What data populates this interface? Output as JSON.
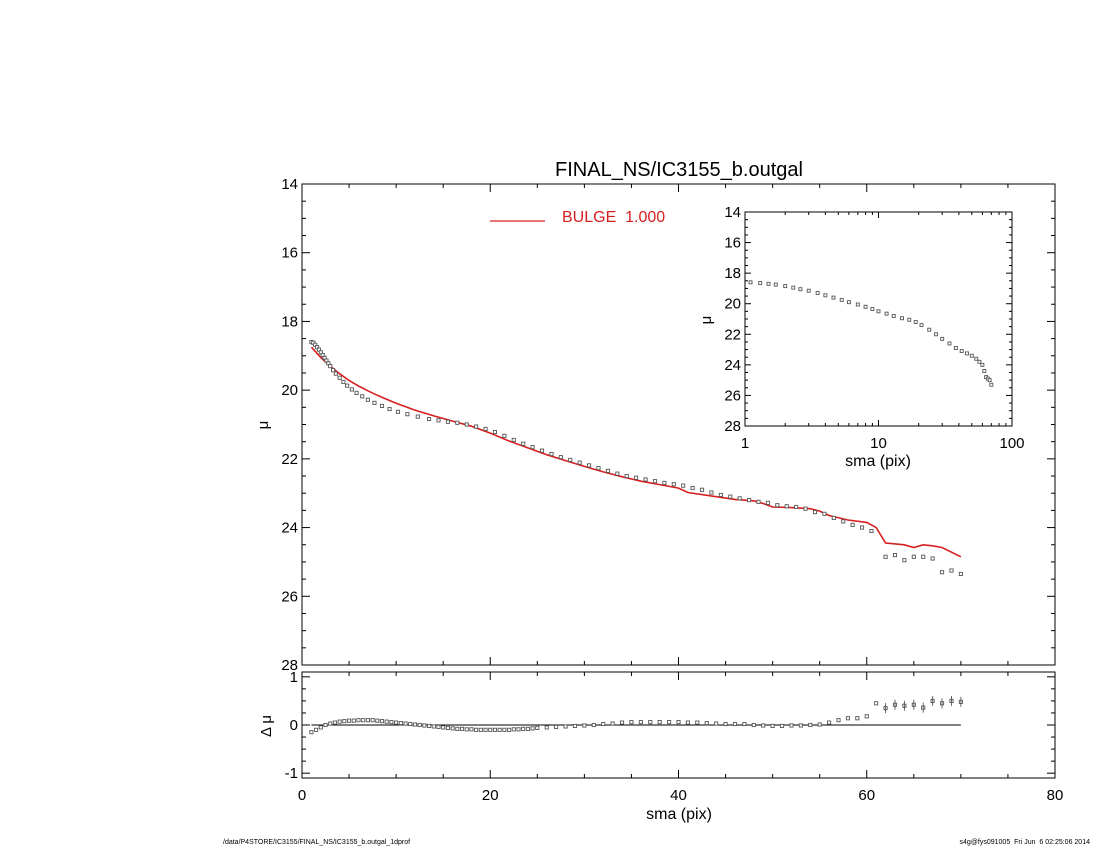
{
  "page": {
    "footer_left": "/data/P4STORE/IC3155/FINAL_NS/IC3155_b.outgal_1dprof",
    "footer_right": "s4g@fys091005  Fri Jun  6 02:25:06 2014"
  },
  "colors": {
    "axes": "#000000",
    "model": "#d62020",
    "data_marker": "#555555"
  },
  "chart_data": [
    {
      "id": "profile",
      "type": "line",
      "title": "FINAL_NS/IC3155_b.outgal",
      "xlabel": "",
      "ylabel": "μ",
      "xlim": [
        0,
        80
      ],
      "ylim": [
        28,
        14
      ],
      "y_inverted": true,
      "xticks": [
        0,
        20,
        40,
        60,
        80
      ],
      "yticks": [
        14,
        16,
        18,
        20,
        22,
        24,
        26,
        28
      ],
      "show_x_ticklabels": false,
      "legend": {
        "placement": "top-center",
        "entries": [
          {
            "label": "BULGE  1.000",
            "color": "#d62020"
          }
        ]
      },
      "series": [
        {
          "name": "BULGE  1.000",
          "kind": "line",
          "color": "#d62020",
          "x": [
            1,
            2,
            3,
            4,
            5,
            6,
            7,
            8,
            10,
            12,
            14,
            16,
            18,
            20,
            22,
            24,
            26,
            28,
            30,
            32,
            34,
            36,
            38,
            40,
            41,
            44,
            46,
            48,
            49,
            50,
            52,
            54,
            55,
            56,
            58,
            60,
            61,
            62,
            64,
            65,
            66,
            67,
            68,
            70
          ],
          "y": [
            18.75,
            19.05,
            19.3,
            19.52,
            19.72,
            19.88,
            20.02,
            20.15,
            20.38,
            20.58,
            20.75,
            20.9,
            21.05,
            21.25,
            21.48,
            21.68,
            21.88,
            22.05,
            22.22,
            22.38,
            22.52,
            22.65,
            22.75,
            22.85,
            22.98,
            23.1,
            23.18,
            23.22,
            23.3,
            23.4,
            23.42,
            23.45,
            23.52,
            23.65,
            23.78,
            23.85,
            24.0,
            24.45,
            24.5,
            24.58,
            24.5,
            24.53,
            24.58,
            24.85
          ]
        },
        {
          "name": "",
          "kind": "marker",
          "color": "#555555",
          "x": [
            1,
            1.2,
            1.4,
            1.6,
            1.8,
            2,
            2.2,
            2.4,
            2.6,
            2.8,
            3,
            3.3,
            3.6,
            4,
            4.4,
            4.8,
            5.3,
            5.8,
            6.4,
            7,
            7.7,
            8.5,
            9.3,
            10.2,
            11.2,
            12.3,
            13.5,
            14.5,
            15.5,
            16.5,
            17.5,
            18.5,
            19.5,
            20.5,
            21.5,
            22.5,
            23.5,
            24.5,
            25.5,
            26.5,
            27.5,
            28.5,
            29.5,
            30.5,
            31.5,
            32.5,
            33.5,
            34.5,
            35.5,
            36.5,
            37.5,
            38.5,
            39.5,
            40.5,
            41.5,
            42.5,
            43.5,
            44.5,
            45.5,
            46.5,
            47.5,
            48.5,
            49.5,
            50.5,
            51.5,
            52.5,
            53.5,
            54.5,
            55.5,
            56.5,
            57.5,
            58.5,
            59.5,
            60.5,
            62,
            63,
            64,
            65,
            66,
            67,
            68,
            69,
            70
          ],
          "y": [
            18.6,
            18.62,
            18.68,
            18.75,
            18.82,
            18.9,
            18.98,
            19.06,
            19.14,
            19.22,
            19.3,
            19.42,
            19.52,
            19.64,
            19.76,
            19.87,
            19.98,
            20.08,
            20.18,
            20.28,
            20.37,
            20.46,
            20.55,
            20.63,
            20.7,
            20.77,
            20.84,
            20.88,
            20.92,
            20.95,
            21.0,
            21.06,
            21.13,
            21.22,
            21.33,
            21.45,
            21.56,
            21.66,
            21.76,
            21.86,
            21.95,
            22.03,
            22.11,
            22.19,
            22.27,
            22.35,
            22.43,
            22.5,
            22.55,
            22.6,
            22.65,
            22.7,
            22.74,
            22.78,
            22.85,
            22.9,
            22.98,
            23.05,
            23.1,
            23.15,
            23.2,
            23.25,
            23.28,
            23.35,
            23.38,
            23.4,
            23.45,
            23.55,
            23.6,
            23.72,
            23.82,
            23.92,
            24.0,
            24.1,
            24.85,
            24.8,
            24.95,
            24.85,
            24.85,
            24.9,
            25.3,
            25.25,
            25.35
          ]
        }
      ]
    },
    {
      "id": "residual",
      "type": "scatter",
      "xlabel": "sma (pix)",
      "ylabel": "Δ μ",
      "xlim": [
        0,
        80
      ],
      "ylim": [
        -1.1,
        1.1
      ],
      "xticks": [
        0,
        20,
        40,
        60,
        80
      ],
      "yticks": [
        -1,
        0,
        1
      ],
      "reference_line": 0,
      "series": [
        {
          "name": "",
          "kind": "marker",
          "color": "#555555",
          "x": [
            1,
            1.5,
            2,
            2.5,
            3,
            3.5,
            4,
            4.5,
            5,
            5.5,
            6,
            6.5,
            7,
            7.5,
            8,
            8.5,
            9,
            9.5,
            10,
            10.5,
            11,
            11.5,
            12,
            12.5,
            13,
            13.5,
            14,
            14.5,
            15,
            15.5,
            16,
            16.5,
            17,
            17.5,
            18,
            18.5,
            19,
            19.5,
            20,
            20.5,
            21,
            21.5,
            22,
            22.5,
            23,
            23.5,
            24,
            24.5,
            25,
            26,
            27,
            28,
            29,
            30,
            31,
            32,
            33,
            34,
            35,
            36,
            37,
            38,
            39,
            40,
            41,
            42,
            43,
            44,
            45,
            46,
            47,
            48,
            49,
            50,
            51,
            52,
            53,
            54,
            55,
            56,
            57,
            58,
            59,
            60,
            61,
            62,
            63,
            64,
            65,
            66,
            67,
            68,
            69,
            70
          ],
          "y": [
            -0.15,
            -0.1,
            -0.05,
            0.0,
            0.03,
            0.05,
            0.07,
            0.08,
            0.09,
            0.09,
            0.1,
            0.1,
            0.1,
            0.1,
            0.09,
            0.08,
            0.07,
            0.06,
            0.05,
            0.04,
            0.03,
            0.02,
            0.01,
            0.0,
            -0.01,
            -0.02,
            -0.03,
            -0.04,
            -0.05,
            -0.06,
            -0.07,
            -0.08,
            -0.08,
            -0.09,
            -0.09,
            -0.1,
            -0.1,
            -0.1,
            -0.1,
            -0.1,
            -0.1,
            -0.1,
            -0.1,
            -0.09,
            -0.09,
            -0.08,
            -0.08,
            -0.07,
            -0.06,
            -0.05,
            -0.04,
            -0.03,
            -0.02,
            -0.01,
            0.0,
            0.02,
            0.03,
            0.05,
            0.06,
            0.06,
            0.06,
            0.06,
            0.06,
            0.06,
            0.05,
            0.05,
            0.04,
            0.03,
            0.02,
            0.02,
            0.02,
            0.0,
            -0.01,
            -0.02,
            -0.02,
            -0.01,
            -0.01,
            0.0,
            0.01,
            0.05,
            0.1,
            0.14,
            0.14,
            0.18,
            0.45,
            0.35,
            0.42,
            0.4,
            0.42,
            0.36,
            0.5,
            0.45,
            0.5,
            0.48
          ]
        }
      ]
    },
    {
      "id": "inset-log",
      "type": "scatter",
      "xlabel": "sma (pix)",
      "ylabel": "μ",
      "xscale": "log",
      "xlim": [
        1,
        100
      ],
      "ylim": [
        28,
        14
      ],
      "y_inverted": true,
      "xticks": [
        1,
        10,
        100
      ],
      "yticks": [
        14,
        16,
        18,
        20,
        22,
        24,
        26,
        28
      ],
      "series": [
        {
          "name": "",
          "kind": "marker",
          "color": "#555555",
          "x": [
            1.1,
            1.3,
            1.5,
            1.7,
            2,
            2.3,
            2.6,
            3,
            3.5,
            4,
            4.6,
            5.3,
            6,
            7,
            8,
            9,
            10,
            11.5,
            13,
            15,
            17,
            19,
            21,
            24,
            27,
            30,
            34,
            38,
            42,
            46,
            50,
            54,
            57,
            60,
            62,
            64,
            66,
            68,
            70
          ],
          "y": [
            18.6,
            18.65,
            18.7,
            18.75,
            18.85,
            18.95,
            19.05,
            19.15,
            19.3,
            19.45,
            19.6,
            19.75,
            19.9,
            20.05,
            20.2,
            20.35,
            20.5,
            20.65,
            20.8,
            20.95,
            21.05,
            21.2,
            21.4,
            21.7,
            22.0,
            22.3,
            22.6,
            22.9,
            23.1,
            23.25,
            23.4,
            23.6,
            23.8,
            24.0,
            24.4,
            24.8,
            24.9,
            25.0,
            25.3
          ]
        }
      ]
    }
  ]
}
